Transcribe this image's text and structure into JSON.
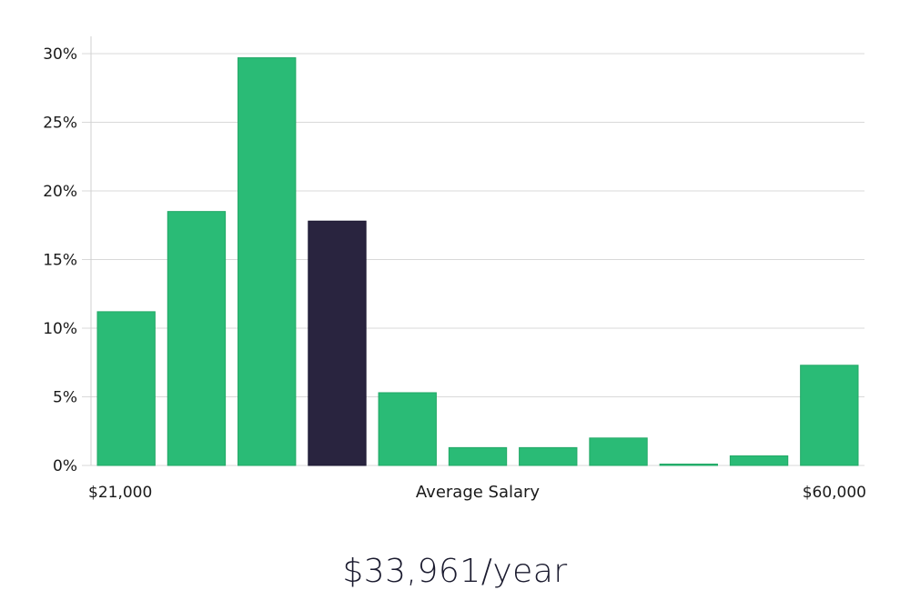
{
  "chart_data": {
    "type": "bar",
    "series": [
      {
        "values": [
          11.2,
          18.5,
          29.7,
          17.8,
          5.3,
          1.3,
          1.3,
          2.0,
          0.1,
          0.7,
          7.3
        ]
      }
    ],
    "highlighted_index": 3,
    "colors": {
      "bar": "#2abb76",
      "highlight": "#29243f"
    },
    "ylim": [
      0,
      30
    ],
    "yticks": [
      0,
      5,
      10,
      15,
      20,
      25,
      30
    ],
    "ytick_labels": [
      "0%",
      "5%",
      "10%",
      "15%",
      "20%",
      "25%",
      "30%"
    ],
    "x_axis": {
      "min_label": "$21,000",
      "center_label": "Average Salary",
      "max_label": "$60,000"
    },
    "grid": true
  },
  "summary": {
    "salary_text": "$33,961/year"
  }
}
